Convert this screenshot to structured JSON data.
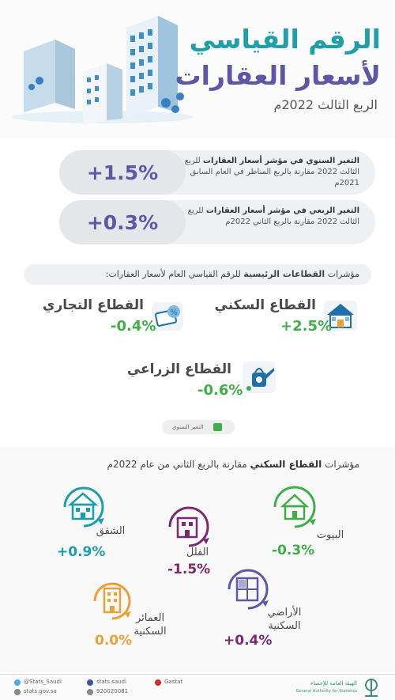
{
  "header": {
    "title_line1": "الرقم القياسي",
    "title_line2": "لأسعار العقارات",
    "subtitle": "الربع الثالث 2022م"
  },
  "summary": {
    "annual": {
      "value": "+1.5%",
      "text_bold": "التغير السنوي في مؤشر أسعار العقارات",
      "text_rest": "للربع الثالث 2022 مقارنة بالربع المناظر في العام السابق 2021م"
    },
    "quarterly": {
      "value": "+0.3%",
      "text_bold": "التغير الربعي في مؤشر أسعار العقارات",
      "text_rest": "للربع الثالث 2022 مقارنة بالربع الثاني 2022م"
    }
  },
  "sectors": {
    "heading_prefix": "مؤشرات ",
    "heading_bold": "القطاعات الرئيسية",
    "heading_suffix": " للرقم القياسي العام لأسعار العقارات:",
    "residential": {
      "name": "القطاع السكني",
      "value": "+2.5%"
    },
    "commercial": {
      "name": "القطاع التجاري",
      "value": "-0.4%"
    },
    "agricultural": {
      "name": "القطاع الزراعي",
      "value": "-0.6%"
    },
    "legend_label": "التغير السنوي",
    "legend_color": "#3fae49"
  },
  "residential_breakdown": {
    "heading_prefix": "مؤشرات ",
    "heading_bold": "القطاع السكني",
    "heading_suffix": " مقارنة بالربع الثاني من عام 2022م",
    "items": [
      {
        "name": "البيوت",
        "value": "-0.3%"
      },
      {
        "name": "الفلل",
        "value": "-1.5%"
      },
      {
        "name": "الشقق",
        "value": "+0.9%"
      },
      {
        "name_line1": "الأراضي",
        "name_line2": "السكنية",
        "value": "+0.4%"
      },
      {
        "name_line1": "العمائر",
        "name_line2": "السكنية",
        "value": "0.0%"
      }
    ]
  },
  "footer": {
    "twitter": "@Stats_Saudi",
    "website": "stats.gov.sa",
    "facebook": "stats.saudi",
    "phone": "920020081",
    "youtube": "Gastat",
    "org_ar": "الهيئة العامة للإحصاء",
    "org_en": "General Authority for Statistics"
  },
  "colors": {
    "teal": "#20a0a6",
    "purple": "#5d57a5",
    "green": "#3fae49",
    "dark_purple": "#7b2a6f",
    "orange": "#e9a13a"
  }
}
